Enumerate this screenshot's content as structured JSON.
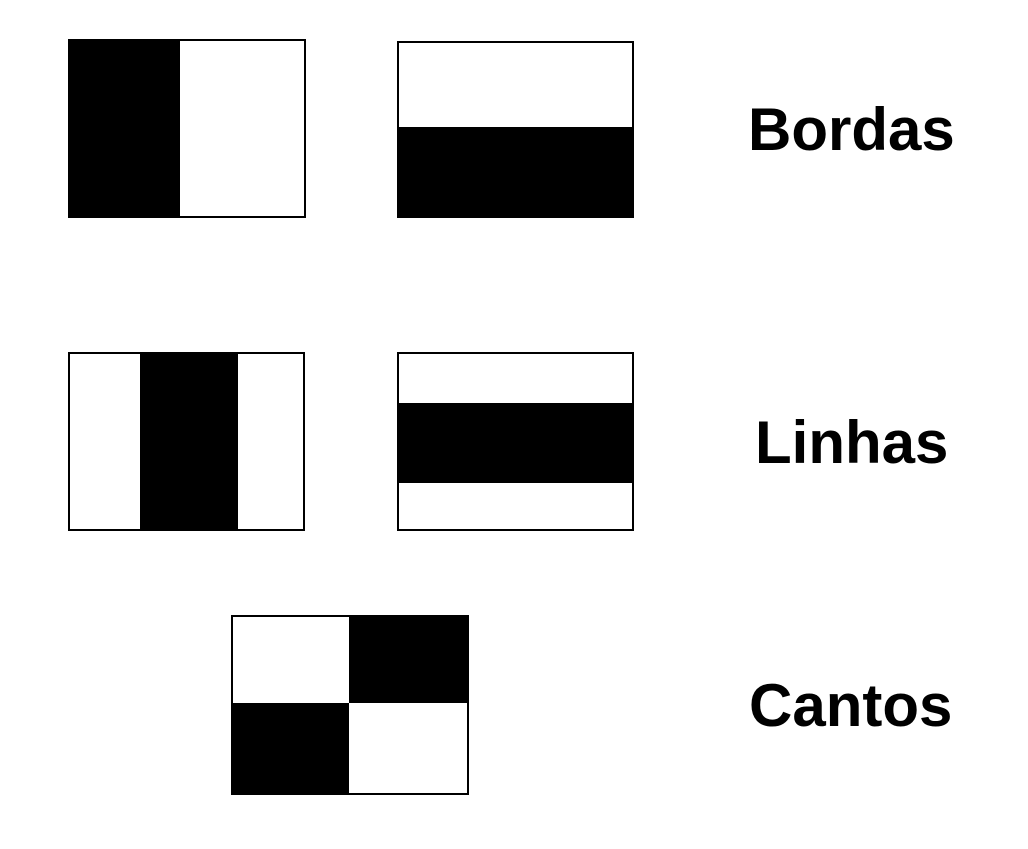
{
  "categories": [
    {
      "id": "edges",
      "label": "Bordas"
    },
    {
      "id": "lines",
      "label": "Linhas"
    },
    {
      "id": "corners",
      "label": "Cantos"
    }
  ],
  "features": {
    "edge_vertical": "two-rect-vertical-split",
    "edge_horizontal": "two-rect-horizontal-split",
    "line_vertical": "three-rect-vertical-center",
    "line_horizontal": "three-rect-horizontal-center",
    "corner_checker": "four-rect-checkerboard"
  },
  "colors": {
    "dark": "#000000",
    "light": "#ffffff"
  }
}
